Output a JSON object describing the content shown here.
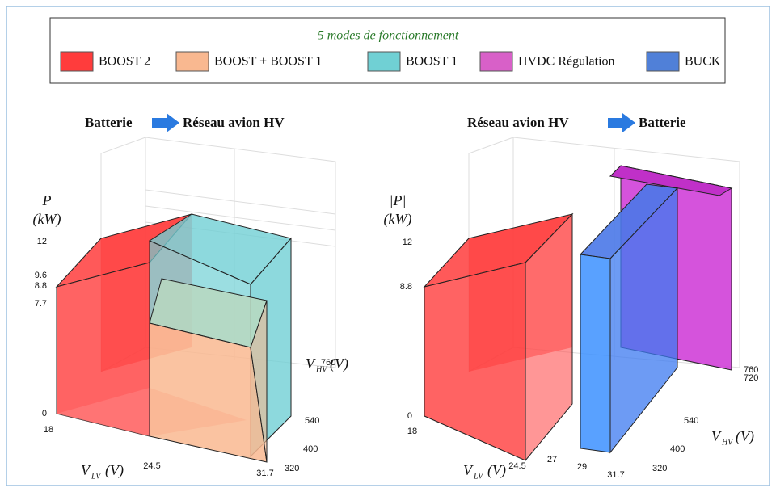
{
  "legend": {
    "title": "5 modes de fonctionnement",
    "items": [
      {
        "label": "BOOST 2",
        "color": "#ff3c3c",
        "text_color": "#e02020"
      },
      {
        "label": "BOOST + BOOST 1",
        "color": "#f9b890",
        "text_color": "#f2b080"
      },
      {
        "label": "BOOST 1",
        "color": "#70d0d4",
        "text_color": "#30b8c4"
      },
      {
        "label": "HVDC Régulation",
        "color": "#d860c8",
        "text_color": "#c010c0"
      },
      {
        "label": "BUCK",
        "color": "#5080d8",
        "text_color": "#4080e0"
      }
    ]
  },
  "panels": [
    {
      "title_from": "Batterie",
      "title_to": "Réseau avion HV",
      "z_label": "P",
      "z_unit": "(kW)",
      "z_ticks": [
        12,
        9.6,
        8.8,
        7.7,
        0
      ],
      "x_label": "V",
      "x_sub": "LV",
      "x_unit": "(V)",
      "x_ticks": [
        18,
        24.5,
        31.7
      ],
      "y_label": "V",
      "y_sub": "HV",
      "y_unit": "(V)",
      "y_ticks": [
        320,
        400,
        540,
        760
      ]
    },
    {
      "title_from": "Réseau avion HV",
      "title_to": "Batterie",
      "z_label": "|P|",
      "z_unit": "(kW)",
      "z_ticks": [
        12,
        8.8,
        0
      ],
      "x_label": "V",
      "x_sub": "LV",
      "x_unit": "(V)",
      "x_ticks": [
        18,
        24.5,
        27,
        29,
        31.7
      ],
      "y_label": "V",
      "y_sub": "HV",
      "y_unit": "(V)",
      "y_ticks": [
        320,
        400,
        540,
        720,
        760
      ]
    }
  ]
}
